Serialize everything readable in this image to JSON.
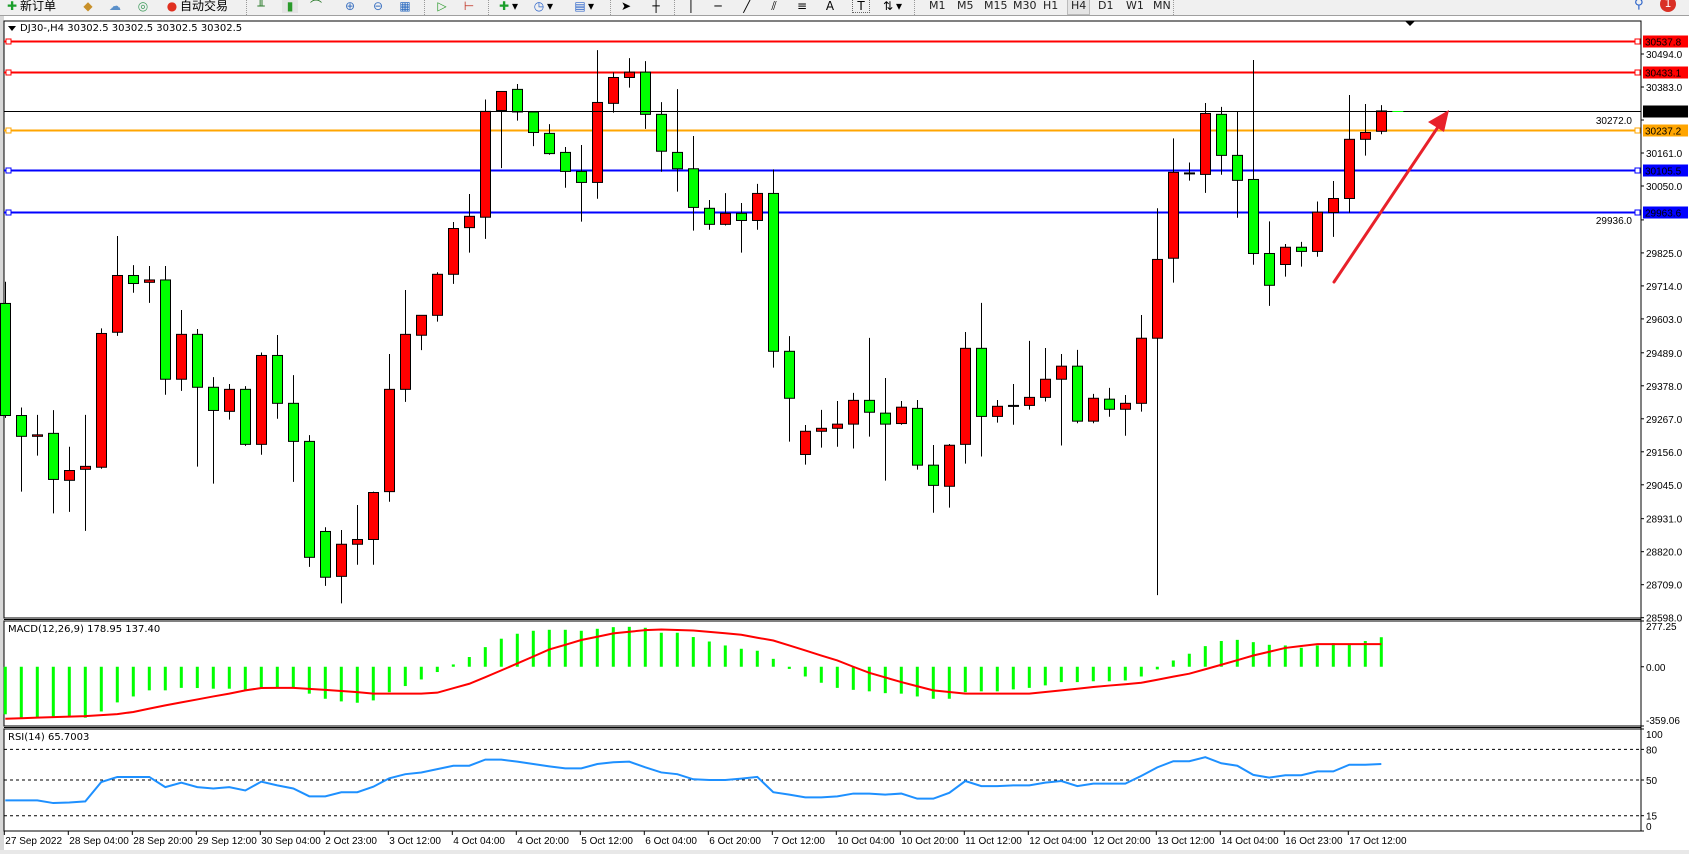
{
  "toolbar": {
    "new_order": "新订单",
    "auto_trading": "自动交易",
    "drawing_text_tool": "A",
    "text_label_tool": "T",
    "timeframes": [
      "M1",
      "M5",
      "M15",
      "M30",
      "H1",
      "H4",
      "D1",
      "W1",
      "MN"
    ],
    "active_timeframe": "H4",
    "notification_count": "1"
  },
  "chart": {
    "title": "DJ30-,H4  30302.5 30302.5 30302.5 30302.5",
    "macd_title": "MACD(12,26,9) 178.95 137.40",
    "rsi_title": "RSI(14) 65.7003",
    "colors": {
      "bull_candle": "#ff0000",
      "bear_candle": "#00ff00",
      "macd_histogram": "#00ff00",
      "macd_signal": "#ff0000",
      "rsi_line": "#1e90ff",
      "resistance": "#ff0000",
      "pivot": "#ffa500",
      "support": "#0000ff",
      "arrow": "#e8212a"
    }
  },
  "chart_data": {
    "type": "candlestick",
    "symbol": "DJ30-",
    "timeframe": "H4",
    "price_ticks": [
      "30494.0",
      "30383.0",
      "30272.0",
      "30161.0",
      "30050.0",
      "29936.0",
      "29825.0",
      "29714.0",
      "29603.0",
      "29489.0",
      "29378.0",
      "29267.0",
      "29156.0",
      "29045.0",
      "28931.0",
      "28820.0",
      "28709.0",
      "28598.0"
    ],
    "price_range": [
      28598.0,
      30494.0
    ],
    "current_price": "30302.5",
    "levels": [
      {
        "value": "30537.8",
        "role": "resistance"
      },
      {
        "value": "30433.1",
        "role": "resistance"
      },
      {
        "value": "30237.2",
        "role": "pivot"
      },
      {
        "value": "30105.5",
        "role": "support"
      },
      {
        "value": "29963.6",
        "role": "support"
      }
    ],
    "time_labels": [
      "27 Sep 2022",
      "28 Sep 04:00",
      "28 Sep 20:00",
      "29 Sep 12:00",
      "30 Sep 04:00",
      "2 Oct 23:00",
      "3 Oct 12:00",
      "4 Oct 04:00",
      "4 Oct 20:00",
      "5 Oct 12:00",
      "6 Oct 04:00",
      "6 Oct 20:00",
      "7 Oct 12:00",
      "10 Oct 04:00",
      "10 Oct 20:00",
      "11 Oct 12:00",
      "12 Oct 04:00",
      "12 Oct 20:00",
      "13 Oct 12:00",
      "14 Oct 04:00",
      "16 Oct 23:00",
      "17 Oct 12:00"
    ],
    "ohlc": [
      [
        29655,
        29728,
        29270,
        29278
      ],
      [
        29278,
        29305,
        29022,
        29208
      ],
      [
        29208,
        29280,
        29143,
        29213
      ],
      [
        29218,
        29296,
        28949,
        29063
      ],
      [
        29060,
        29173,
        28954,
        29093
      ],
      [
        29097,
        29280,
        28890,
        29107
      ],
      [
        29104,
        29571,
        29099,
        29554
      ],
      [
        29558,
        29882,
        29546,
        29749
      ],
      [
        29749,
        29784,
        29691,
        29722
      ],
      [
        29726,
        29781,
        29657,
        29734
      ],
      [
        29734,
        29781,
        29348,
        29400
      ],
      [
        29400,
        29633,
        29361,
        29551
      ],
      [
        29551,
        29569,
        29106,
        29373
      ],
      [
        29373,
        29407,
        29049,
        29295
      ],
      [
        29292,
        29384,
        29264,
        29366
      ],
      [
        29366,
        29377,
        29176,
        29181
      ],
      [
        29181,
        29490,
        29146,
        29480
      ],
      [
        29480,
        29549,
        29267,
        29319
      ],
      [
        29319,
        29414,
        29055,
        29191
      ],
      [
        29191,
        29212,
        28769,
        28801
      ],
      [
        28888,
        28902,
        28705,
        28734
      ],
      [
        28737,
        28893,
        28646,
        28845
      ],
      [
        28845,
        28977,
        28776,
        28861
      ],
      [
        28861,
        29022,
        28776,
        29019
      ],
      [
        29022,
        29485,
        28988,
        29366
      ],
      [
        29366,
        29700,
        29324,
        29551
      ],
      [
        29548,
        29615,
        29498,
        29615
      ],
      [
        29615,
        29760,
        29594,
        29753
      ],
      [
        29753,
        29929,
        29721,
        29907
      ],
      [
        29910,
        30023,
        29826,
        29948
      ],
      [
        29945,
        30341,
        29872,
        30301
      ],
      [
        30304,
        30368,
        30110,
        30368
      ],
      [
        30375,
        30393,
        30270,
        30299
      ],
      [
        30299,
        30299,
        30184,
        30230
      ],
      [
        30227,
        30258,
        30155,
        30159
      ],
      [
        30163,
        30181,
        30044,
        30099
      ],
      [
        30099,
        30188,
        29930,
        30062
      ],
      [
        30062,
        30507,
        30007,
        30331
      ],
      [
        30328,
        30432,
        30297,
        30415
      ],
      [
        30415,
        30480,
        30381,
        30433
      ],
      [
        30433,
        30470,
        30242,
        30291
      ],
      [
        30291,
        30332,
        30098,
        30167
      ],
      [
        30163,
        30376,
        30031,
        30108
      ],
      [
        30108,
        30218,
        29900,
        29978
      ],
      [
        29975,
        30003,
        29903,
        29921
      ],
      [
        29921,
        30026,
        29917,
        29958
      ],
      [
        29958,
        29993,
        29826,
        29934
      ],
      [
        29934,
        30057,
        29903,
        30025
      ],
      [
        30025,
        30106,
        29439,
        29494
      ],
      [
        29494,
        29545,
        29190,
        29336
      ],
      [
        29147,
        29246,
        29113,
        29225
      ],
      [
        29225,
        29297,
        29170,
        29235
      ],
      [
        29235,
        29327,
        29173,
        29249
      ],
      [
        29249,
        29354,
        29167,
        29329
      ],
      [
        29329,
        29539,
        29207,
        29289
      ],
      [
        29286,
        29404,
        29059,
        29249
      ],
      [
        29251,
        29327,
        29247,
        29306
      ],
      [
        29302,
        29330,
        29096,
        29111
      ],
      [
        29111,
        29179,
        28951,
        29043
      ],
      [
        29040,
        29182,
        28968,
        29178
      ],
      [
        29181,
        29559,
        29116,
        29504
      ],
      [
        29504,
        29657,
        29140,
        29275
      ],
      [
        29275,
        29330,
        29254,
        29309
      ],
      [
        29309,
        29384,
        29247,
        29312
      ],
      [
        29312,
        29529,
        29298,
        29339
      ],
      [
        29339,
        29505,
        29325,
        29400
      ],
      [
        29400,
        29485,
        29177,
        29444
      ],
      [
        29444,
        29499,
        29252,
        29259
      ],
      [
        29259,
        29351,
        29252,
        29336
      ],
      [
        29333,
        29371,
        29274,
        29299
      ],
      [
        29299,
        29347,
        29210,
        29319
      ],
      [
        29319,
        29616,
        29291,
        29538
      ],
      [
        29538,
        29975,
        28674,
        29803
      ],
      [
        29807,
        30210,
        29725,
        30096
      ],
      [
        30092,
        30129,
        30068,
        30094
      ],
      [
        30089,
        30329,
        30027,
        30294
      ],
      [
        30291,
        30316,
        30088,
        30153
      ],
      [
        30153,
        30300,
        29943,
        30069
      ],
      [
        30072,
        30474,
        29785,
        29823
      ],
      [
        29823,
        29931,
        29647,
        29716
      ],
      [
        29786,
        29855,
        29745,
        29844
      ],
      [
        29844,
        29862,
        29779,
        29830
      ],
      [
        29830,
        29998,
        29812,
        29962
      ],
      [
        29961,
        30067,
        29879,
        30008
      ],
      [
        30008,
        30356,
        29960,
        30207
      ],
      [
        30207,
        30326,
        30152,
        30230
      ],
      [
        30234,
        30322,
        30224,
        30302.5
      ]
    ],
    "macd": {
      "params": "12,26,9",
      "range": [
        -359.06,
        277.25
      ],
      "ticks": [
        "277.25",
        "0.00",
        "-359.06"
      ],
      "histogram": [
        -288,
        -309,
        -305,
        -305,
        -305,
        -309,
        -271,
        -216,
        -180,
        -143,
        -143,
        -128,
        -129,
        -133,
        -133,
        -143,
        -129,
        -123,
        -123,
        -163,
        -194,
        -210,
        -218,
        -204,
        -154,
        -117,
        -77,
        -32,
        14,
        59,
        119,
        170,
        200,
        218,
        224,
        224,
        218,
        230,
        240,
        242,
        236,
        206,
        206,
        180,
        153,
        129,
        109,
        97,
        48,
        -13,
        -59,
        -97,
        -128,
        -140,
        -149,
        -160,
        -163,
        -180,
        -194,
        -194,
        -154,
        -149,
        -149,
        -137,
        -128,
        -113,
        -93,
        -93,
        -88,
        -88,
        -83,
        -59,
        -16,
        38,
        79,
        125,
        156,
        163,
        149,
        133,
        129,
        115,
        129,
        143,
        139,
        156,
        178.95
      ],
      "signal": [
        -315,
        -312,
        -308,
        -305,
        -302,
        -299,
        -293,
        -287,
        -274,
        -254,
        -234,
        -216,
        -198,
        -180,
        -163,
        -143,
        -129,
        -128,
        -128,
        -134,
        -140,
        -147,
        -154,
        -163,
        -163,
        -163,
        -163,
        -157,
        -130,
        -103,
        -63,
        -22,
        20,
        62,
        105,
        133,
        162,
        182,
        202,
        212,
        222,
        226,
        223,
        220,
        211,
        203,
        194,
        176,
        159,
        129,
        99,
        68,
        38,
        0,
        -37,
        -65,
        -93,
        -118,
        -143,
        -153,
        -163,
        -163,
        -163,
        -163,
        -163,
        -153,
        -143,
        -133,
        -123,
        -114,
        -106,
        -97,
        -79,
        -60,
        -42,
        -15,
        12,
        40,
        68,
        91,
        114,
        126,
        137,
        137,
        137,
        137,
        137.4
      ]
    },
    "rsi": {
      "period": 14,
      "range": [
        0,
        100
      ],
      "ticks": [
        "100",
        "80",
        "50",
        "15",
        "0"
      ],
      "levels": [
        80,
        50,
        15
      ],
      "values": [
        30,
        30,
        30,
        27.4,
        28,
        29,
        48,
        53,
        53,
        53,
        43,
        47.4,
        43,
        41.7,
        43,
        39.7,
        48.4,
        44.7,
        41.7,
        34,
        34,
        38,
        38,
        43.4,
        51.7,
        55.7,
        57.4,
        60.7,
        64,
        64,
        70,
        70,
        68,
        65.7,
        63.4,
        61.4,
        61.4,
        65.7,
        67.4,
        68,
        62.4,
        57.4,
        55.7,
        50.7,
        50,
        50,
        51.4,
        53,
        38,
        35.7,
        33,
        33,
        34,
        36.7,
        36.7,
        35.7,
        36.7,
        31.7,
        31.7,
        37.4,
        49,
        44,
        44,
        44.7,
        44.7,
        47.4,
        49,
        44,
        46.4,
        46.4,
        46.4,
        54,
        62.4,
        68.4,
        68.4,
        72.4,
        66.4,
        64,
        55,
        52.4,
        54.7,
        54.7,
        58.4,
        58.4,
        65,
        65,
        65.7003
      ]
    },
    "annotation": {
      "type": "arrow",
      "direction": "up-right",
      "color": "#e8212a"
    }
  }
}
